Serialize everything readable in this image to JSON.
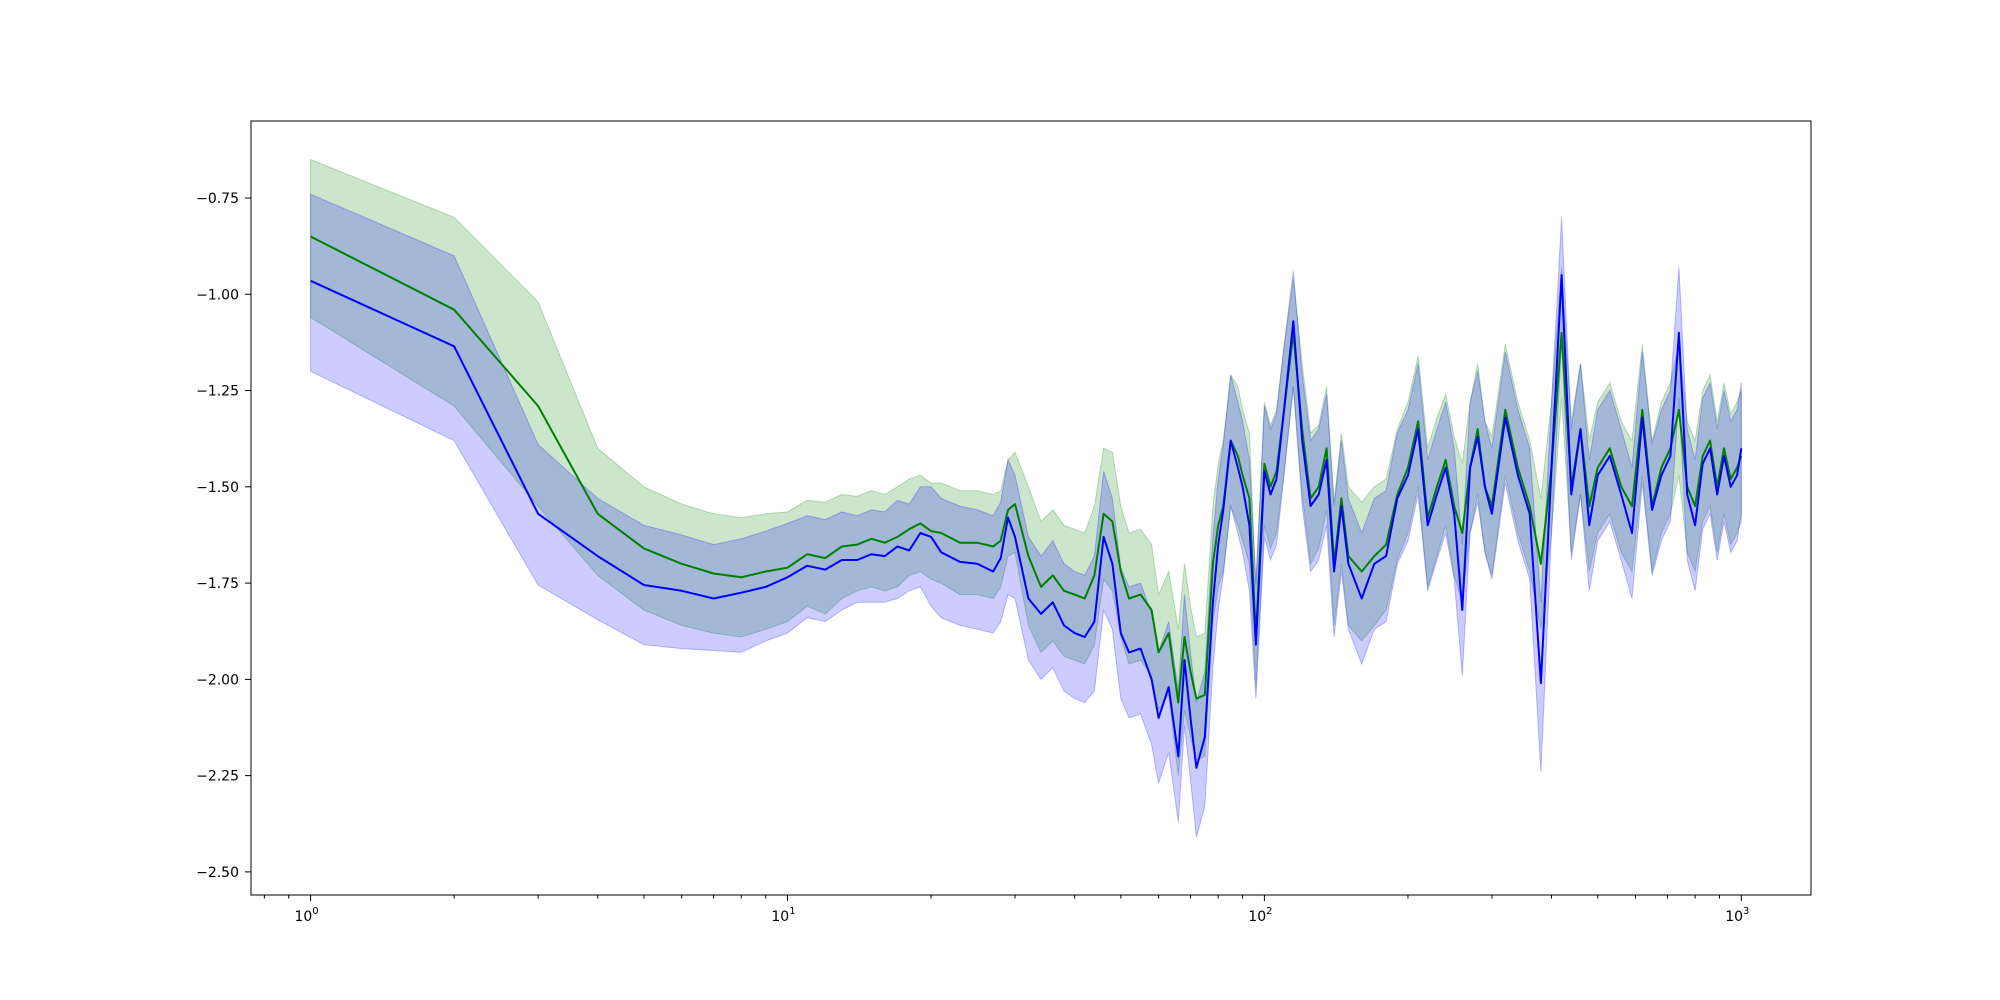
{
  "chart_data": {
    "type": "line",
    "xscale": "log",
    "xlim": [
      0.75,
      1400
    ],
    "ylim": [
      -2.56,
      -0.55
    ],
    "grid": false,
    "legend": "none",
    "x_ticks": [
      {
        "value": 1,
        "base": "10",
        "exp": "0"
      },
      {
        "value": 10,
        "base": "10",
        "exp": "1"
      },
      {
        "value": 100,
        "base": "10",
        "exp": "2"
      },
      {
        "value": 1000,
        "base": "10",
        "exp": "3"
      }
    ],
    "y_ticks": [
      {
        "value": -0.75,
        "label": "−0.75"
      },
      {
        "value": -1.0,
        "label": "−1.00"
      },
      {
        "value": -1.25,
        "label": "−1.25"
      },
      {
        "value": -1.5,
        "label": "−1.50"
      },
      {
        "value": -1.75,
        "label": "−1.75"
      },
      {
        "value": -2.0,
        "label": "−2.00"
      },
      {
        "value": -2.25,
        "label": "−2.25"
      },
      {
        "value": -2.5,
        "label": "−2.50"
      }
    ],
    "x": [
      1,
      2,
      3,
      4,
      5,
      6,
      7,
      8,
      9,
      10,
      11,
      12,
      13,
      14,
      15,
      16,
      17,
      18,
      19,
      20,
      21,
      23,
      25,
      27,
      28,
      29,
      30,
      32,
      34,
      36,
      38,
      40,
      42,
      44,
      46,
      48,
      50,
      52,
      55,
      58,
      60,
      63,
      66,
      68,
      70,
      72,
      75,
      78,
      80,
      82,
      85,
      88,
      90,
      93,
      96,
      100,
      103,
      106,
      110,
      115,
      120,
      125,
      130,
      135,
      140,
      145,
      150,
      160,
      170,
      180,
      190,
      200,
      210,
      220,
      230,
      240,
      250,
      260,
      270,
      280,
      290,
      300,
      320,
      340,
      360,
      380,
      400,
      420,
      440,
      460,
      480,
      500,
      530,
      560,
      590,
      620,
      650,
      680,
      710,
      740,
      770,
      800,
      830,
      860,
      890,
      920,
      950,
      980,
      1000
    ],
    "series": [
      {
        "color": "#008000",
        "band_color": "#008000",
        "values": [
          -0.85,
          -1.04,
          -1.29,
          -1.57,
          -1.66,
          -1.7,
          -1.725,
          -1.735,
          -1.72,
          -1.71,
          -1.675,
          -1.685,
          -1.655,
          -1.65,
          -1.635,
          -1.645,
          -1.63,
          -1.61,
          -1.595,
          -1.615,
          -1.62,
          -1.645,
          -1.645,
          -1.655,
          -1.64,
          -1.56,
          -1.545,
          -1.68,
          -1.76,
          -1.73,
          -1.77,
          -1.78,
          -1.79,
          -1.73,
          -1.57,
          -1.59,
          -1.72,
          -1.79,
          -1.78,
          -1.82,
          -1.93,
          -1.88,
          -2.06,
          -1.89,
          -1.98,
          -2.05,
          -2.04,
          -1.7,
          -1.6,
          -1.55,
          -1.38,
          -1.42,
          -1.47,
          -1.53,
          -1.89,
          -1.44,
          -1.5,
          -1.46,
          -1.3,
          -1.1,
          -1.35,
          -1.53,
          -1.5,
          -1.4,
          -1.7,
          -1.53,
          -1.68,
          -1.72,
          -1.68,
          -1.65,
          -1.52,
          -1.45,
          -1.33,
          -1.58,
          -1.5,
          -1.43,
          -1.55,
          -1.62,
          -1.45,
          -1.35,
          -1.5,
          -1.55,
          -1.3,
          -1.45,
          -1.55,
          -1.7,
          -1.45,
          -1.1,
          -1.5,
          -1.35,
          -1.55,
          -1.45,
          -1.4,
          -1.5,
          -1.55,
          -1.3,
          -1.55,
          -1.45,
          -1.4,
          -1.3,
          -1.5,
          -1.55,
          -1.42,
          -1.38,
          -1.5,
          -1.4,
          -1.48,
          -1.45,
          -1.42
        ],
        "lower": [
          -1.06,
          -1.29,
          -1.55,
          -1.73,
          -1.82,
          -1.86,
          -1.88,
          -1.89,
          -1.87,
          -1.85,
          -1.81,
          -1.83,
          -1.79,
          -1.77,
          -1.76,
          -1.77,
          -1.76,
          -1.73,
          -1.72,
          -1.74,
          -1.75,
          -1.78,
          -1.78,
          -1.79,
          -1.76,
          -1.68,
          -1.67,
          -1.86,
          -1.93,
          -1.9,
          -1.94,
          -1.95,
          -1.96,
          -1.91,
          -1.74,
          -1.77,
          -1.89,
          -1.96,
          -1.95,
          -1.99,
          -2.08,
          -2.04,
          -2.25,
          -2.08,
          -2.15,
          -2.21,
          -2.2,
          -1.85,
          -1.76,
          -1.72,
          -1.55,
          -1.6,
          -1.64,
          -1.7,
          -2.02,
          -1.6,
          -1.66,
          -1.62,
          -1.46,
          -1.24,
          -1.52,
          -1.7,
          -1.66,
          -1.56,
          -1.86,
          -1.7,
          -1.86,
          -1.9,
          -1.86,
          -1.82,
          -1.69,
          -1.62,
          -1.5,
          -1.76,
          -1.68,
          -1.6,
          -1.73,
          -1.8,
          -1.62,
          -1.52,
          -1.67,
          -1.73,
          -1.47,
          -1.62,
          -1.72,
          -1.87,
          -1.62,
          -1.27,
          -1.67,
          -1.52,
          -1.72,
          -1.62,
          -1.57,
          -1.67,
          -1.72,
          -1.47,
          -1.72,
          -1.62,
          -1.57,
          -1.47,
          -1.67,
          -1.72,
          -1.59,
          -1.55,
          -1.67,
          -1.57,
          -1.65,
          -1.62,
          -1.59
        ],
        "upper": [
          -0.65,
          -0.8,
          -1.02,
          -1.4,
          -1.5,
          -1.545,
          -1.57,
          -1.58,
          -1.57,
          -1.565,
          -1.535,
          -1.54,
          -1.52,
          -1.525,
          -1.51,
          -1.52,
          -1.5,
          -1.48,
          -1.47,
          -1.49,
          -1.49,
          -1.51,
          -1.51,
          -1.52,
          -1.51,
          -1.43,
          -1.41,
          -1.5,
          -1.59,
          -1.56,
          -1.6,
          -1.61,
          -1.62,
          -1.55,
          -1.4,
          -1.41,
          -1.55,
          -1.62,
          -1.61,
          -1.65,
          -1.78,
          -1.72,
          -1.87,
          -1.7,
          -1.81,
          -1.89,
          -1.88,
          -1.55,
          -1.44,
          -1.38,
          -1.21,
          -1.24,
          -1.3,
          -1.36,
          -1.76,
          -1.28,
          -1.34,
          -1.3,
          -1.14,
          -0.96,
          -1.18,
          -1.36,
          -1.34,
          -1.24,
          -1.54,
          -1.36,
          -1.5,
          -1.54,
          -1.5,
          -1.48,
          -1.35,
          -1.28,
          -1.16,
          -1.4,
          -1.32,
          -1.26,
          -1.37,
          -1.44,
          -1.28,
          -1.18,
          -1.33,
          -1.37,
          -1.13,
          -1.28,
          -1.38,
          -1.53,
          -1.28,
          -0.93,
          -1.33,
          -1.18,
          -1.38,
          -1.28,
          -1.23,
          -1.33,
          -1.38,
          -1.13,
          -1.38,
          -1.28,
          -1.23,
          -1.13,
          -1.33,
          -1.38,
          -1.25,
          -1.21,
          -1.33,
          -1.23,
          -1.31,
          -1.28,
          -1.25
        ]
      },
      {
        "color": "#0000ff",
        "band_color": "#0000ff",
        "values": [
          -0.965,
          -1.135,
          -1.57,
          -1.68,
          -1.755,
          -1.77,
          -1.79,
          -1.775,
          -1.76,
          -1.735,
          -1.705,
          -1.715,
          -1.69,
          -1.69,
          -1.675,
          -1.68,
          -1.655,
          -1.665,
          -1.62,
          -1.63,
          -1.67,
          -1.695,
          -1.7,
          -1.72,
          -1.685,
          -1.58,
          -1.63,
          -1.79,
          -1.83,
          -1.8,
          -1.86,
          -1.88,
          -1.89,
          -1.85,
          -1.63,
          -1.7,
          -1.88,
          -1.93,
          -1.92,
          -2.0,
          -2.1,
          -2.02,
          -2.2,
          -1.95,
          -2.1,
          -2.23,
          -2.15,
          -1.8,
          -1.65,
          -1.56,
          -1.38,
          -1.45,
          -1.5,
          -1.6,
          -1.91,
          -1.46,
          -1.52,
          -1.48,
          -1.3,
          -1.07,
          -1.38,
          -1.55,
          -1.52,
          -1.43,
          -1.72,
          -1.55,
          -1.7,
          -1.79,
          -1.7,
          -1.68,
          -1.53,
          -1.47,
          -1.35,
          -1.6,
          -1.52,
          -1.45,
          -1.57,
          -1.82,
          -1.45,
          -1.37,
          -1.5,
          -1.57,
          -1.32,
          -1.47,
          -1.57,
          -2.01,
          -1.45,
          -0.95,
          -1.52,
          -1.35,
          -1.6,
          -1.47,
          -1.42,
          -1.52,
          -1.62,
          -1.32,
          -1.56,
          -1.47,
          -1.42,
          -1.1,
          -1.52,
          -1.6,
          -1.44,
          -1.4,
          -1.52,
          -1.42,
          -1.5,
          -1.47,
          -1.4
        ],
        "lower": [
          -1.2,
          -1.38,
          -1.755,
          -1.845,
          -1.91,
          -1.92,
          -1.925,
          -1.93,
          -1.9,
          -1.88,
          -1.84,
          -1.85,
          -1.82,
          -1.8,
          -1.8,
          -1.8,
          -1.79,
          -1.77,
          -1.76,
          -1.81,
          -1.84,
          -1.86,
          -1.87,
          -1.88,
          -1.85,
          -1.78,
          -1.79,
          -1.95,
          -2.0,
          -1.97,
          -2.03,
          -2.05,
          -2.06,
          -2.03,
          -1.82,
          -1.87,
          -2.05,
          -2.1,
          -2.09,
          -2.17,
          -2.27,
          -2.19,
          -2.37,
          -2.12,
          -2.26,
          -2.41,
          -2.33,
          -1.97,
          -1.82,
          -1.73,
          -1.55,
          -1.62,
          -1.67,
          -1.77,
          -2.05,
          -1.63,
          -1.69,
          -1.65,
          -1.47,
          -1.24,
          -1.55,
          -1.72,
          -1.69,
          -1.6,
          -1.89,
          -1.72,
          -1.87,
          -1.96,
          -1.87,
          -1.85,
          -1.7,
          -1.64,
          -1.52,
          -1.77,
          -1.69,
          -1.62,
          -1.74,
          -1.99,
          -1.62,
          -1.54,
          -1.67,
          -1.74,
          -1.49,
          -1.64,
          -1.74,
          -2.24,
          -1.62,
          -1.12,
          -1.69,
          -1.52,
          -1.77,
          -1.64,
          -1.59,
          -1.69,
          -1.79,
          -1.49,
          -1.73,
          -1.64,
          -1.59,
          -1.27,
          -1.69,
          -1.77,
          -1.61,
          -1.57,
          -1.69,
          -1.59,
          -1.67,
          -1.64,
          -1.57
        ],
        "upper": [
          -0.74,
          -0.9,
          -1.39,
          -1.53,
          -1.6,
          -1.625,
          -1.65,
          -1.635,
          -1.615,
          -1.595,
          -1.575,
          -1.585,
          -1.565,
          -1.575,
          -1.56,
          -1.565,
          -1.535,
          -1.545,
          -1.5,
          -1.5,
          -1.53,
          -1.55,
          -1.56,
          -1.575,
          -1.54,
          -1.43,
          -1.47,
          -1.63,
          -1.68,
          -1.64,
          -1.7,
          -1.72,
          -1.73,
          -1.68,
          -1.46,
          -1.53,
          -1.71,
          -1.76,
          -1.75,
          -1.83,
          -1.93,
          -1.85,
          -2.03,
          -1.78,
          -1.93,
          -2.06,
          -1.98,
          -1.63,
          -1.48,
          -1.39,
          -1.21,
          -1.28,
          -1.33,
          -1.43,
          -1.75,
          -1.29,
          -1.35,
          -1.31,
          -1.13,
          -0.94,
          -1.21,
          -1.38,
          -1.35,
          -1.26,
          -1.55,
          -1.38,
          -1.53,
          -1.62,
          -1.53,
          -1.51,
          -1.36,
          -1.3,
          -1.18,
          -1.43,
          -1.35,
          -1.28,
          -1.4,
          -1.65,
          -1.28,
          -1.2,
          -1.33,
          -1.4,
          -1.15,
          -1.3,
          -1.4,
          -1.8,
          -1.28,
          -0.8,
          -1.35,
          -1.18,
          -1.43,
          -1.3,
          -1.25,
          -1.35,
          -1.45,
          -1.15,
          -1.39,
          -1.3,
          -1.25,
          -0.93,
          -1.35,
          -1.43,
          -1.27,
          -1.23,
          -1.35,
          -1.25,
          -1.33,
          -1.3,
          -1.23
        ]
      }
    ]
  }
}
